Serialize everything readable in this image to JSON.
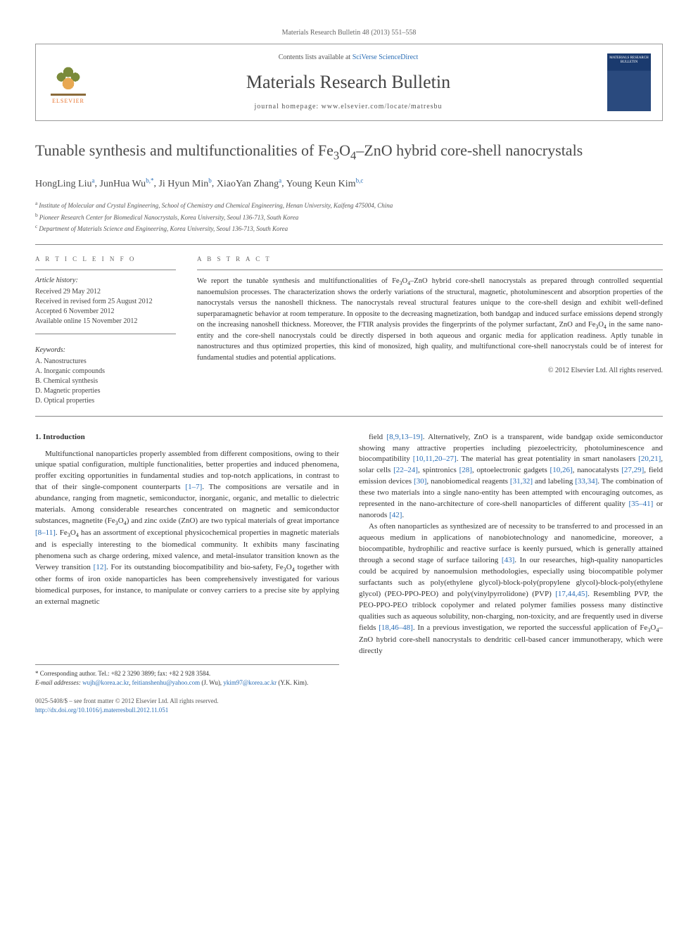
{
  "header_citation": "Materials Research Bulletin 48 (2013) 551–558",
  "contents_prefix": "Contents lists available at ",
  "contents_link": "SciVerse ScienceDirect",
  "journal_name": "Materials Research Bulletin",
  "homepage_prefix": "journal homepage: ",
  "homepage_url": "www.elsevier.com/locate/matresbu",
  "publisher_name": "ELSEVIER",
  "cover_text": "MATERIALS RESEARCH BULLETIN",
  "title_html": "Tunable synthesis and multifunctionalities of Fe<sub>3</sub>O<sub>4</sub>–ZnO hybrid core-shell nanocrystals",
  "authors": [
    {
      "name": "HongLing Liu",
      "aff": "a"
    },
    {
      "name": "JunHua Wu",
      "aff": "b,*"
    },
    {
      "name": "Ji Hyun Min",
      "aff": "b"
    },
    {
      "name": "XiaoYan Zhang",
      "aff": "a"
    },
    {
      "name": "Young Keun Kim",
      "aff": "b,c"
    }
  ],
  "affiliations": [
    {
      "sup": "a",
      "text": "Institute of Molecular and Crystal Engineering, School of Chemistry and Chemical Engineering, Henan University, Kaifeng 475004, China"
    },
    {
      "sup": "b",
      "text": "Pioneer Research Center for Biomedical Nanocrystals, Korea University, Seoul 136-713, South Korea"
    },
    {
      "sup": "c",
      "text": "Department of Materials Science and Engineering, Korea University, Seoul 136-713, South Korea"
    }
  ],
  "article_info_head": "A R T I C L E  I N F O",
  "abstract_head": "A B S T R A C T",
  "history_label": "Article history:",
  "history": [
    "Received 29 May 2012",
    "Received in revised form 25 August 2012",
    "Accepted 6 November 2012",
    "Available online 15 November 2012"
  ],
  "keywords_label": "Keywords:",
  "keywords": [
    "A. Nanostructures",
    "A. Inorganic compounds",
    "B. Chemical synthesis",
    "D. Magnetic properties",
    "D. Optical properties"
  ],
  "abstract_html": "We report the tunable synthesis and multifunctionalities of Fe<sub>3</sub>O<sub>4</sub>–ZnO hybrid core-shell nanocrystals as prepared through controlled sequential nanoemulsion processes. The characterization shows the orderly variations of the structural, magnetic, photoluminescent and absorption properties of the nanocrystals versus the nanoshell thickness. The nanocrystals reveal structural features unique to the core-shell design and exhibit well-defined superparamagnetic behavior at room temperature. In opposite to the decreasing magnetization, both bandgap and induced surface emissions depend strongly on the increasing nanoshell thickness. Moreover, the FTIR analysis provides the fingerprints of the polymer surfactant, ZnO and Fe<sub>3</sub>O<sub>4</sub> in the same nano-entity and the core-shell nanocrystals could be directly dispersed in both aqueous and organic media for application readiness. Aptly tunable in nanostructures and thus optimized properties, this kind of monosized, high quality, and multifunctional core-shell nanocrystals could be of interest for fundamental studies and potential applications.",
  "copyright": "© 2012 Elsevier Ltd. All rights reserved.",
  "intro_head": "1. Introduction",
  "col1_html": "Multifunctional nanoparticles properly assembled from different compositions, owing to their unique spatial configuration, multiple functionalities, better properties and induced phenomena, proffer exciting opportunities in fundamental studies and top-notch applications, in contrast to that of their single-component counterparts <span class=\"ref\">[1–7]</span>. The compositions are versatile and in abundance, ranging from magnetic, semiconductor, inorganic, organic, and metallic to dielectric materials. Among considerable researches concentrated on magnetic and semiconductor substances, magnetite (Fe<sub>3</sub>O<sub>4</sub>) and zinc oxide (ZnO) are two typical materials of great importance <span class=\"ref\">[8–11]</span>. Fe<sub>3</sub>O<sub>4</sub> has an assortment of exceptional physicochemical properties in magnetic materials and is especially interesting to the biomedical community. It exhibits many fascinating phenomena such as charge ordering, mixed valence, and metal-insulator transition known as the Verwey transition <span class=\"ref\">[12]</span>. For its outstanding biocompatibility and bio-safety, Fe<sub>3</sub>O<sub>4</sub> together with other forms of iron oxide nanoparticles has been comprehensively investigated for various biomedical purposes, for instance, to manipulate or convey carriers to a precise site by applying an external magnetic",
  "col2_p1_html": "field <span class=\"ref\">[8,9,13–19]</span>. Alternatively, ZnO is a transparent, wide bandgap oxide semiconductor showing many attractive properties including piezoelectricity, photoluminescence and biocompatibility <span class=\"ref\">[10,11,20–27]</span>. The material has great potentiality in smart nanolasers <span class=\"ref\">[20,21]</span>, solar cells <span class=\"ref\">[22–24]</span>, spintronics <span class=\"ref\">[28]</span>, optoelectronic gadgets <span class=\"ref\">[10,26]</span>, nanocatalysts <span class=\"ref\">[27,29]</span>, field emission devices <span class=\"ref\">[30]</span>, nanobiomedical reagents <span class=\"ref\">[31,32]</span> and labeling <span class=\"ref\">[33,34]</span>. The combination of these two materials into a single nano-entity has been attempted with encouraging outcomes, as represented in the nano-architecture of core-shell nanoparticles of different quality <span class=\"ref\">[35–41]</span> or nanorods <span class=\"ref\">[42]</span>.",
  "col2_p2_html": "As often nanoparticles as synthesized are of necessity to be transferred to and processed in an aqueous medium in applications of nanobiotechnology and nanomedicine, moreover, a biocompatible, hydrophilic and reactive surface is keenly pursued, which is generally attained through a second stage of surface tailoring <span class=\"ref\">[43]</span>. In our researches, high-quality nanoparticles could be acquired by nanoemulsion methodologies, especially using biocompatible polymer surfactants such as poly(ethylene glycol)-block-poly(propylene glycol)-block-poly(ethylene glycol) (PEO-PPO-PEO) and poly(vinylpyrrolidone) (PVP) <span class=\"ref\">[17,44,45]</span>. Resembling PVP, the PEO-PPO-PEO triblock copolymer and related polymer families possess many distinctive qualities such as aqueous solubility, non-charging, non-toxicity, and are frequently used in diverse fields <span class=\"ref\">[18,46–48]</span>. In a previous investigation, we reported the successful application of Fe<sub>3</sub>O<sub>4</sub>–ZnO hybrid core-shell nanocrystals to dendritic cell-based cancer immunotherapy, which were directly",
  "footnote": {
    "corr": "* Corresponding author. Tel.: +82 2 3290 3899; fax: +82 2 928 3584.",
    "email_label": "E-mail addresses:",
    "emails": "wujh@korea.ac.kr, feitianshenhu@yahoo.com (J. Wu), ykim97@korea.ac.kr (Y.K. Kim)."
  },
  "bottom": {
    "issn": "0025-5408/$ – see front matter © 2012 Elsevier Ltd. All rights reserved.",
    "doi": "http://dx.doi.org/10.1016/j.materresbull.2012.11.051"
  },
  "colors": {
    "link": "#2a6db5",
    "text": "#333333",
    "muted": "#666666",
    "rule": "#888888",
    "elsevier_orange": "#e8712a",
    "cover_bg": "#1a3a6e"
  }
}
